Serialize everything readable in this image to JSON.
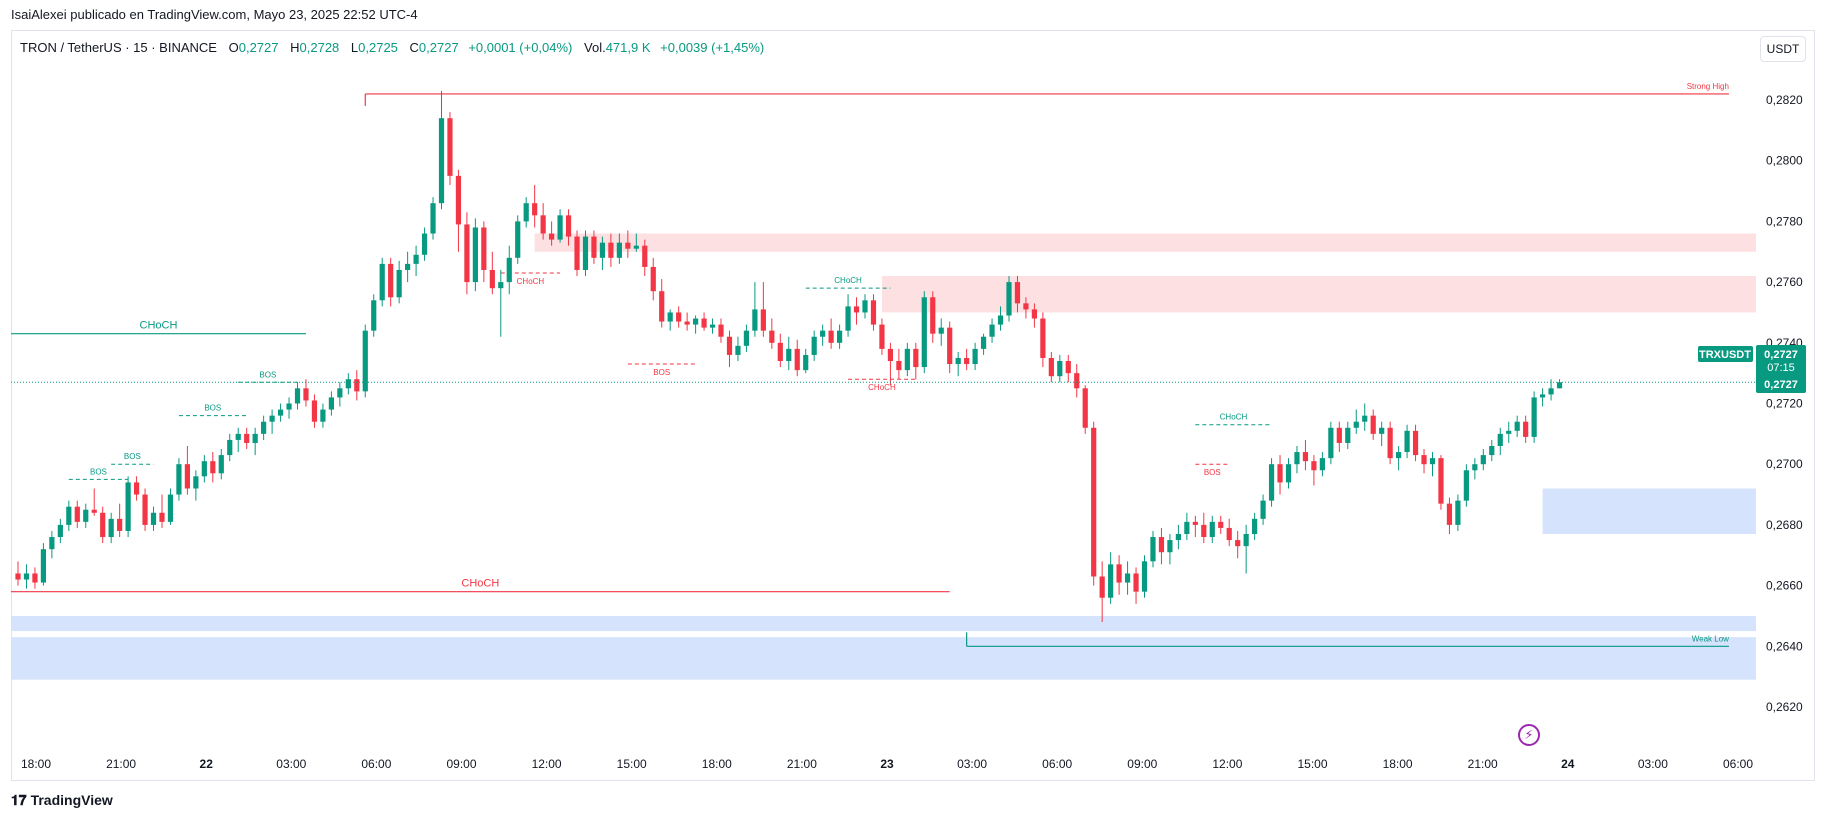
{
  "header": {
    "published": "IsaiAlexei publicado en TradingView.com, Mayo 23, 2025 22:52 UTC-4"
  },
  "legend": {
    "symbol": "TRON / TetherUS · 15 · BINANCE",
    "open_label": "O",
    "open": "0,2727",
    "high_label": "H",
    "high": "0,2728",
    "low_label": "L",
    "low": "0,2725",
    "close_label": "C",
    "close": "0,2727",
    "change": "+0,0001 (+0,04%)",
    "vol_label": "Vol.",
    "vol": "471,9 K",
    "vol_change": "+0,0039 (+1,45%)"
  },
  "currency_button": "USDT",
  "brand": "TradingView",
  "colors": {
    "up": "#089981",
    "down": "#f23645",
    "supply_zone": "#fde0e2",
    "demand_zone": "#d5e3fc"
  },
  "chart_data": {
    "type": "candlestick",
    "y_axis": {
      "range": [
        0.2605,
        0.2838
      ],
      "ticks": [
        "0,2620",
        "0,2640",
        "0,2660",
        "0,2680",
        "0,2700",
        "0,2720",
        "0,2740",
        "0,2760",
        "0,2780",
        "0,2800",
        "0,2820"
      ]
    },
    "x_axis": {
      "ticks": [
        "18:00",
        "21:00",
        "22",
        "03:00",
        "06:00",
        "09:00",
        "12:00",
        "15:00",
        "18:00",
        "21:00",
        "23",
        "03:00",
        "06:00",
        "09:00",
        "12:00",
        "15:00",
        "18:00",
        "21:00",
        "24",
        "03:00",
        "06:00"
      ],
      "bold": [
        "22",
        "23",
        "24"
      ]
    },
    "price_label": {
      "symbol": "TRXUSDT",
      "price": "0,2727",
      "countdown": "07:15",
      "value": 0.2727
    },
    "candles": [
      [
        0.2664,
        0.2668,
        0.266,
        0.2662
      ],
      [
        0.2662,
        0.2667,
        0.2659,
        0.2664
      ],
      [
        0.2664,
        0.2666,
        0.2659,
        0.2661
      ],
      [
        0.2661,
        0.2674,
        0.266,
        0.2672
      ],
      [
        0.2672,
        0.2678,
        0.2669,
        0.2676
      ],
      [
        0.2676,
        0.2682,
        0.2674,
        0.268
      ],
      [
        0.268,
        0.2688,
        0.2678,
        0.2686
      ],
      [
        0.2686,
        0.2688,
        0.2679,
        0.2681
      ],
      [
        0.2681,
        0.2687,
        0.2679,
        0.2685
      ],
      [
        0.2685,
        0.2692,
        0.2683,
        0.2684
      ],
      [
        0.2684,
        0.2686,
        0.2674,
        0.2676
      ],
      [
        0.2676,
        0.2684,
        0.2674,
        0.2682
      ],
      [
        0.2682,
        0.2687,
        0.2676,
        0.2678
      ],
      [
        0.2678,
        0.2696,
        0.2676,
        0.2694
      ],
      [
        0.2694,
        0.2696,
        0.2688,
        0.269
      ],
      [
        0.269,
        0.2692,
        0.2678,
        0.268
      ],
      [
        0.268,
        0.2686,
        0.2678,
        0.2684
      ],
      [
        0.2684,
        0.269,
        0.2679,
        0.2681
      ],
      [
        0.2681,
        0.2692,
        0.268,
        0.269
      ],
      [
        0.269,
        0.2702,
        0.2688,
        0.27
      ],
      [
        0.27,
        0.2706,
        0.269,
        0.2692
      ],
      [
        0.2692,
        0.2698,
        0.2688,
        0.2696
      ],
      [
        0.2696,
        0.2703,
        0.2694,
        0.2701
      ],
      [
        0.2701,
        0.2704,
        0.2694,
        0.2697
      ],
      [
        0.2697,
        0.2705,
        0.2695,
        0.2703
      ],
      [
        0.2703,
        0.271,
        0.2701,
        0.2708
      ],
      [
        0.2708,
        0.2712,
        0.2704,
        0.271
      ],
      [
        0.271,
        0.2712,
        0.2705,
        0.2707
      ],
      [
        0.2707,
        0.2712,
        0.2703,
        0.271
      ],
      [
        0.271,
        0.2716,
        0.2708,
        0.2714
      ],
      [
        0.2714,
        0.2718,
        0.271,
        0.2716
      ],
      [
        0.2716,
        0.272,
        0.2714,
        0.2718
      ],
      [
        0.2718,
        0.2722,
        0.2715,
        0.272
      ],
      [
        0.272,
        0.2727,
        0.2718,
        0.2725
      ],
      [
        0.2725,
        0.2728,
        0.2719,
        0.2721
      ],
      [
        0.2721,
        0.2723,
        0.2712,
        0.2714
      ],
      [
        0.2714,
        0.272,
        0.2712,
        0.2718
      ],
      [
        0.2718,
        0.2724,
        0.2716,
        0.2722
      ],
      [
        0.2722,
        0.2727,
        0.2719,
        0.2725
      ],
      [
        0.2725,
        0.273,
        0.2723,
        0.2728
      ],
      [
        0.2728,
        0.2731,
        0.2721,
        0.2724
      ],
      [
        0.2724,
        0.2746,
        0.2722,
        0.2744
      ],
      [
        0.2744,
        0.2756,
        0.2742,
        0.2754
      ],
      [
        0.2754,
        0.2768,
        0.2752,
        0.2766
      ],
      [
        0.2766,
        0.2768,
        0.2752,
        0.2755
      ],
      [
        0.2755,
        0.2767,
        0.2753,
        0.2764
      ],
      [
        0.2764,
        0.277,
        0.276,
        0.2766
      ],
      [
        0.2766,
        0.2772,
        0.2762,
        0.2769
      ],
      [
        0.2769,
        0.2778,
        0.2767,
        0.2776
      ],
      [
        0.2776,
        0.2788,
        0.2774,
        0.2786
      ],
      [
        0.2786,
        0.2823,
        0.2784,
        0.2814
      ],
      [
        0.2814,
        0.2816,
        0.2792,
        0.2795
      ],
      [
        0.2795,
        0.2797,
        0.277,
        0.2779
      ],
      [
        0.2779,
        0.2783,
        0.2756,
        0.276
      ],
      [
        0.276,
        0.2781,
        0.2757,
        0.2778
      ],
      [
        0.2778,
        0.278,
        0.276,
        0.2764
      ],
      [
        0.2764,
        0.277,
        0.2756,
        0.2758
      ],
      [
        0.2758,
        0.2764,
        0.2742,
        0.276
      ],
      [
        0.276,
        0.2772,
        0.2756,
        0.2768
      ],
      [
        0.2768,
        0.2782,
        0.2766,
        0.278
      ],
      [
        0.278,
        0.2788,
        0.2778,
        0.2786
      ],
      [
        0.2786,
        0.2792,
        0.2778,
        0.2782
      ],
      [
        0.2782,
        0.2786,
        0.2774,
        0.2776
      ],
      [
        0.2776,
        0.278,
        0.2772,
        0.2774
      ],
      [
        0.2774,
        0.2784,
        0.2773,
        0.2782
      ],
      [
        0.2782,
        0.2784,
        0.2772,
        0.2775
      ],
      [
        0.2775,
        0.2777,
        0.2762,
        0.2764
      ],
      [
        0.2764,
        0.2777,
        0.2762,
        0.2775
      ],
      [
        0.2775,
        0.2777,
        0.2766,
        0.2768
      ],
      [
        0.2768,
        0.2775,
        0.2764,
        0.2773
      ],
      [
        0.2773,
        0.2776,
        0.2765,
        0.2768
      ],
      [
        0.2768,
        0.2776,
        0.2766,
        0.2773
      ],
      [
        0.2773,
        0.2777,
        0.2768,
        0.2771
      ],
      [
        0.2771,
        0.2776,
        0.277,
        0.2772
      ],
      [
        0.2772,
        0.2774,
        0.2762,
        0.2765
      ],
      [
        0.2765,
        0.2768,
        0.2754,
        0.2757
      ],
      [
        0.2757,
        0.2761,
        0.2745,
        0.2747
      ],
      [
        0.2747,
        0.2751,
        0.2744,
        0.275
      ],
      [
        0.275,
        0.2752,
        0.2745,
        0.2747
      ],
      [
        0.2747,
        0.275,
        0.2744,
        0.2746
      ],
      [
        0.2746,
        0.2749,
        0.2743,
        0.2748
      ],
      [
        0.2748,
        0.275,
        0.2744,
        0.2745
      ],
      [
        0.2745,
        0.2748,
        0.2743,
        0.2746
      ],
      [
        0.2746,
        0.2748,
        0.274,
        0.2742
      ],
      [
        0.2742,
        0.2744,
        0.2732,
        0.2736
      ],
      [
        0.2736,
        0.2742,
        0.2734,
        0.2739
      ],
      [
        0.2739,
        0.2746,
        0.2737,
        0.2744
      ],
      [
        0.2744,
        0.276,
        0.2742,
        0.2751
      ],
      [
        0.2751,
        0.276,
        0.2742,
        0.2744
      ],
      [
        0.2744,
        0.2748,
        0.2738,
        0.274
      ],
      [
        0.274,
        0.2743,
        0.2732,
        0.2734
      ],
      [
        0.2734,
        0.2742,
        0.2731,
        0.2738
      ],
      [
        0.2738,
        0.2741,
        0.2729,
        0.2731
      ],
      [
        0.2731,
        0.2738,
        0.273,
        0.2736
      ],
      [
        0.2736,
        0.2744,
        0.2734,
        0.2742
      ],
      [
        0.2742,
        0.2746,
        0.2739,
        0.2744
      ],
      [
        0.2744,
        0.2748,
        0.2738,
        0.274
      ],
      [
        0.274,
        0.2746,
        0.2738,
        0.2744
      ],
      [
        0.2744,
        0.2756,
        0.2742,
        0.2752
      ],
      [
        0.2752,
        0.2755,
        0.2746,
        0.275
      ],
      [
        0.275,
        0.2756,
        0.2748,
        0.2754
      ],
      [
        0.2754,
        0.2756,
        0.2744,
        0.2746
      ],
      [
        0.2746,
        0.2748,
        0.2736,
        0.2738
      ],
      [
        0.2738,
        0.274,
        0.2726,
        0.2734
      ],
      [
        0.2734,
        0.2738,
        0.2728,
        0.2731
      ],
      [
        0.2731,
        0.274,
        0.2729,
        0.2738
      ],
      [
        0.2738,
        0.274,
        0.2728,
        0.2732
      ],
      [
        0.2732,
        0.2757,
        0.273,
        0.2755
      ],
      [
        0.2755,
        0.2757,
        0.274,
        0.2743
      ],
      [
        0.2743,
        0.2748,
        0.2739,
        0.2745
      ],
      [
        0.2745,
        0.2747,
        0.273,
        0.2733
      ],
      [
        0.2733,
        0.2737,
        0.2729,
        0.2735
      ],
      [
        0.2735,
        0.2738,
        0.2731,
        0.2733
      ],
      [
        0.2733,
        0.274,
        0.2731,
        0.2738
      ],
      [
        0.2738,
        0.2743,
        0.2736,
        0.2742
      ],
      [
        0.2742,
        0.2748,
        0.274,
        0.2746
      ],
      [
        0.2746,
        0.2752,
        0.2744,
        0.2749
      ],
      [
        0.2749,
        0.2762,
        0.2747,
        0.276
      ],
      [
        0.276,
        0.2762,
        0.275,
        0.2753
      ],
      [
        0.2753,
        0.2755,
        0.2748,
        0.2751
      ],
      [
        0.2751,
        0.2753,
        0.2745,
        0.2748
      ],
      [
        0.2748,
        0.275,
        0.2732,
        0.2735
      ],
      [
        0.2735,
        0.2737,
        0.2727,
        0.2729
      ],
      [
        0.2729,
        0.2736,
        0.2727,
        0.2734
      ],
      [
        0.2734,
        0.2736,
        0.2727,
        0.273
      ],
      [
        0.273,
        0.2733,
        0.2722,
        0.2725
      ],
      [
        0.2725,
        0.2726,
        0.271,
        0.2712
      ],
      [
        0.2712,
        0.2714,
        0.266,
        0.2663
      ],
      [
        0.2663,
        0.2668,
        0.2648,
        0.2656
      ],
      [
        0.2656,
        0.2671,
        0.2654,
        0.2667
      ],
      [
        0.2667,
        0.267,
        0.2657,
        0.2661
      ],
      [
        0.2661,
        0.2668,
        0.2657,
        0.2664
      ],
      [
        0.2664,
        0.2666,
        0.2654,
        0.2658
      ],
      [
        0.2658,
        0.267,
        0.2656,
        0.2668
      ],
      [
        0.2668,
        0.2678,
        0.2666,
        0.2676
      ],
      [
        0.2676,
        0.2679,
        0.2667,
        0.2671
      ],
      [
        0.2671,
        0.2677,
        0.2667,
        0.2675
      ],
      [
        0.2675,
        0.268,
        0.2672,
        0.2677
      ],
      [
        0.2677,
        0.2684,
        0.2675,
        0.2681
      ],
      [
        0.2681,
        0.2683,
        0.2676,
        0.268
      ],
      [
        0.268,
        0.2684,
        0.2674,
        0.2676
      ],
      [
        0.2676,
        0.2683,
        0.2674,
        0.2681
      ],
      [
        0.2681,
        0.2683,
        0.2677,
        0.2679
      ],
      [
        0.2679,
        0.2682,
        0.2673,
        0.2675
      ],
      [
        0.2675,
        0.2678,
        0.2669,
        0.2673
      ],
      [
        0.2673,
        0.268,
        0.2664,
        0.2677
      ],
      [
        0.2677,
        0.2684,
        0.2675,
        0.2682
      ],
      [
        0.2682,
        0.269,
        0.268,
        0.2688
      ],
      [
        0.2688,
        0.2702,
        0.2686,
        0.27
      ],
      [
        0.27,
        0.2703,
        0.269,
        0.2694
      ],
      [
        0.2694,
        0.2702,
        0.2692,
        0.27
      ],
      [
        0.27,
        0.2706,
        0.2697,
        0.2704
      ],
      [
        0.2704,
        0.2708,
        0.2698,
        0.2701
      ],
      [
        0.2701,
        0.2703,
        0.2693,
        0.2698
      ],
      [
        0.2698,
        0.2704,
        0.2696,
        0.2702
      ],
      [
        0.2702,
        0.2714,
        0.27,
        0.2712
      ],
      [
        0.2712,
        0.2714,
        0.2704,
        0.2707
      ],
      [
        0.2707,
        0.2714,
        0.2705,
        0.2712
      ],
      [
        0.2712,
        0.2718,
        0.271,
        0.2714
      ],
      [
        0.2714,
        0.272,
        0.2711,
        0.2716
      ],
      [
        0.2716,
        0.2718,
        0.2708,
        0.271
      ],
      [
        0.271,
        0.2714,
        0.2706,
        0.2712
      ],
      [
        0.2712,
        0.2714,
        0.27,
        0.2702
      ],
      [
        0.2702,
        0.2706,
        0.2698,
        0.2704
      ],
      [
        0.2704,
        0.2713,
        0.2702,
        0.2711
      ],
      [
        0.2711,
        0.2713,
        0.2701,
        0.2703
      ],
      [
        0.2703,
        0.2705,
        0.2697,
        0.27
      ],
      [
        0.27,
        0.2704,
        0.2696,
        0.2702
      ],
      [
        0.2702,
        0.2703,
        0.2685,
        0.2687
      ],
      [
        0.2687,
        0.2689,
        0.2677,
        0.268
      ],
      [
        0.268,
        0.269,
        0.2678,
        0.2688
      ],
      [
        0.2688,
        0.27,
        0.2686,
        0.2698
      ],
      [
        0.2698,
        0.2702,
        0.2695,
        0.27
      ],
      [
        0.27,
        0.2705,
        0.2698,
        0.2703
      ],
      [
        0.2703,
        0.2708,
        0.2701,
        0.2706
      ],
      [
        0.2706,
        0.2712,
        0.2703,
        0.271
      ],
      [
        0.271,
        0.2714,
        0.2707,
        0.2711
      ],
      [
        0.2711,
        0.2716,
        0.2709,
        0.2714
      ],
      [
        0.2714,
        0.2716,
        0.2707,
        0.2709
      ],
      [
        0.2709,
        0.2724,
        0.2707,
        0.2722
      ],
      [
        0.2722,
        0.2725,
        0.2719,
        0.2723
      ],
      [
        0.2723,
        0.2728,
        0.2721,
        0.2725
      ],
      [
        0.2725,
        0.2728,
        0.2725,
        0.2727
      ]
    ],
    "zones": [
      {
        "kind": "supply",
        "from": 61,
        "to": 216,
        "top": 0.2776,
        "bottom": 0.277
      },
      {
        "kind": "supply",
        "from": 102,
        "to": 216,
        "top": 0.2762,
        "bottom": 0.275
      },
      {
        "kind": "demand",
        "from": -4,
        "to": 216,
        "top": 0.265,
        "bottom": 0.2645
      },
      {
        "kind": "demand",
        "from": -4,
        "to": 216,
        "top": 0.2643,
        "bottom": 0.2629
      },
      {
        "kind": "demand",
        "from": 180,
        "to": 216,
        "top": 0.2692,
        "bottom": 0.2677
      }
    ],
    "levels": [
      {
        "label": "Strong High",
        "price": 0.2822,
        "from": 41,
        "to": 202,
        "color": "#f23645",
        "style": "solid",
        "label_align": "end"
      },
      {
        "label": "Weak Low",
        "price": 0.264,
        "from": 112,
        "to": 202,
        "color": "#089981",
        "style": "solid",
        "label_align": "end"
      },
      {
        "label": "CHoCH",
        "price": 0.2743,
        "from": -3,
        "to": 34,
        "color": "#089981",
        "style": "solid",
        "label_align": "center",
        "label_size": 11
      },
      {
        "label": "CHoCH",
        "price": 0.2658,
        "from": -3,
        "to": 110,
        "color": "#f23645",
        "style": "solid",
        "label_align": "center",
        "label_size": 11
      },
      {
        "label": "BOS",
        "price": 0.2695,
        "from": 6,
        "to": 13,
        "color": "#089981",
        "style": "dashed",
        "label_align": "center"
      },
      {
        "label": "BOS",
        "price": 0.27,
        "from": 11,
        "to": 16,
        "color": "#089981",
        "style": "dashed",
        "label_align": "center"
      },
      {
        "label": "BOS",
        "price": 0.2716,
        "from": 19,
        "to": 27,
        "color": "#089981",
        "style": "dashed",
        "label_align": "center"
      },
      {
        "label": "BOS",
        "price": 0.2727,
        "from": 26,
        "to": 33,
        "color": "#089981",
        "style": "dashed",
        "label_align": "center"
      },
      {
        "label": "CHoCH",
        "price": 0.2763,
        "from": 57,
        "to": 64,
        "color": "#f23645",
        "style": "dashed",
        "label_align": "center",
        "label_below": true
      },
      {
        "label": "BOS",
        "price": 0.2733,
        "from": 72,
        "to": 80,
        "color": "#f23645",
        "style": "dashed",
        "label_align": "center",
        "label_below": true
      },
      {
        "label": "CHoCH",
        "price": 0.2758,
        "from": 93,
        "to": 103,
        "color": "#089981",
        "style": "dashed",
        "label_align": "center"
      },
      {
        "label": "CHoCH",
        "price": 0.2728,
        "from": 98,
        "to": 106,
        "color": "#f23645",
        "style": "dashed",
        "label_align": "center",
        "label_below": true
      },
      {
        "label": "CHoCH",
        "price": 0.2713,
        "from": 139,
        "to": 148,
        "color": "#089981",
        "style": "dashed",
        "label_align": "center"
      },
      {
        "label": "BOS",
        "price": 0.27,
        "from": 139,
        "to": 143,
        "color": "#f23645",
        "style": "dashed",
        "label_align": "center",
        "label_below": true
      }
    ]
  }
}
